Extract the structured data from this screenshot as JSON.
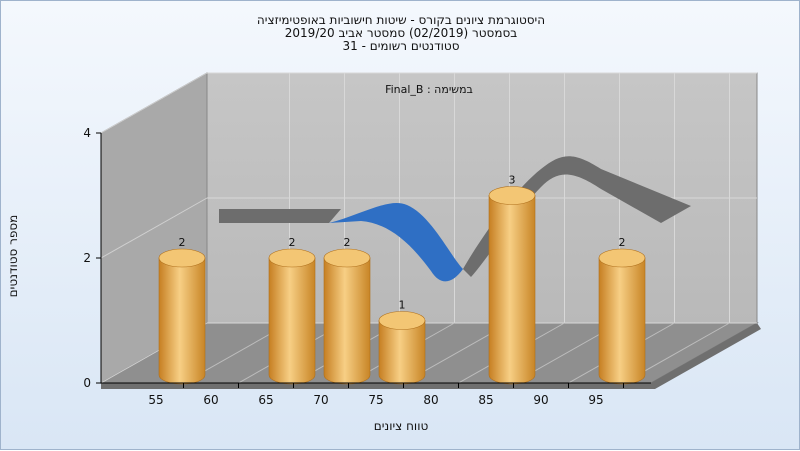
{
  "titles": [
    "היסטוגרמת ציונים בקורס - שיטות חישוביות באופטימיזציה",
    "בסמסטר (02/2019) סמסטר אביב 2019/20",
    "סטודנטים רשומים - 31"
  ],
  "colors": {
    "bar": "#e6a142",
    "bar_top": "#f3c674",
    "curve_main": "#6d6d6d",
    "curve_highlight": "#2f6fc4",
    "wall": "#a9a9a9",
    "floor": "#8f8f8f",
    "grid": "#d8d8d8"
  },
  "chart_data": {
    "type": "bar",
    "title": "היסטוגרמת ציונים בקורס - שיטות חישוביות באופטימיזציה",
    "subtitle": "Final_B : במשימה",
    "xlabel": "טווח ציונים",
    "ylabel": "מספר סטודנטים",
    "x_ticks": [
      "55",
      "60",
      "65",
      "70",
      "75",
      "80",
      "85",
      "90",
      "95"
    ],
    "y_ticks": [
      "0",
      "2",
      "4"
    ],
    "ylim": [
      0,
      4
    ],
    "categories": [
      "55",
      "65",
      "70",
      "75",
      "85",
      "95"
    ],
    "values": [
      2,
      2,
      2,
      1,
      3,
      2
    ],
    "series": [
      {
        "values": [
          2,
          2,
          2,
          1,
          3,
          2
        ]
      }
    ],
    "grid": true,
    "three_d": true
  }
}
